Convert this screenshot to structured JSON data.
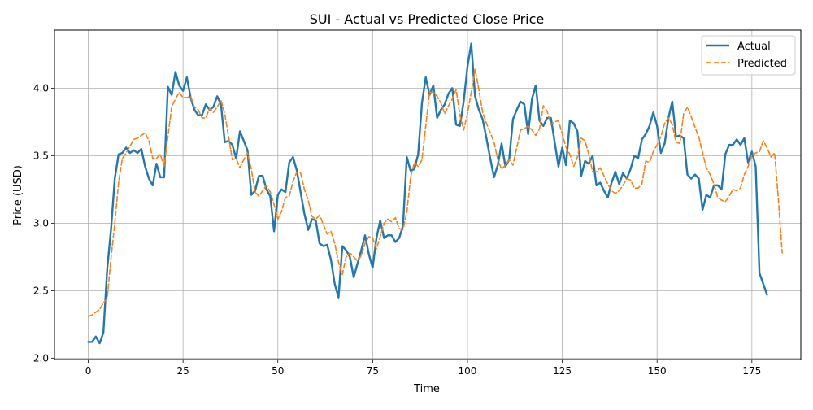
{
  "chart_data": {
    "type": "line",
    "title": "SUI - Actual vs Predicted Close Price",
    "xlabel": "Time",
    "ylabel": "Price (USD)",
    "xlim": [
      -8.9,
      187.9
    ],
    "ylim": [
      1.99,
      4.43
    ],
    "xticks": [
      0,
      25,
      50,
      75,
      100,
      125,
      150,
      175
    ],
    "yticks": [
      2.0,
      2.5,
      3.0,
      3.5,
      4.0
    ],
    "ytick_labels": [
      "2.0",
      "2.5",
      "3.0",
      "3.5",
      "4.0"
    ],
    "grid": true,
    "legend_position": "top-right",
    "series": [
      {
        "name": "Actual",
        "color": "#1f77b4",
        "style": "solid",
        "values": [
          2.12,
          2.12,
          2.16,
          2.11,
          2.19,
          2.66,
          2.95,
          3.33,
          3.51,
          3.52,
          3.56,
          3.52,
          3.54,
          3.52,
          3.55,
          3.42,
          3.33,
          3.28,
          3.44,
          3.34,
          3.34,
          4.01,
          3.95,
          4.12,
          4.02,
          3.98,
          4.08,
          3.93,
          3.84,
          3.8,
          3.8,
          3.88,
          3.84,
          3.86,
          3.94,
          3.88,
          3.6,
          3.61,
          3.58,
          3.48,
          3.68,
          3.61,
          3.54,
          3.21,
          3.24,
          3.35,
          3.35,
          3.25,
          3.2,
          2.94,
          3.21,
          3.25,
          3.23,
          3.45,
          3.49,
          3.39,
          3.23,
          3.07,
          2.95,
          3.03,
          3.02,
          2.85,
          2.83,
          2.84,
          2.73,
          2.55,
          2.45,
          2.83,
          2.8,
          2.75,
          2.6,
          2.7,
          2.8,
          2.91,
          2.77,
          2.67,
          2.89,
          3.02,
          2.89,
          2.91,
          2.91,
          2.86,
          2.89,
          2.98,
          3.49,
          3.39,
          3.4,
          3.51,
          3.89,
          4.08,
          3.95,
          4.02,
          3.78,
          3.84,
          3.88,
          3.96,
          4.0,
          3.73,
          3.72,
          3.9,
          4.16,
          4.33,
          3.94,
          3.84,
          3.77,
          3.63,
          3.48,
          3.34,
          3.43,
          3.59,
          3.42,
          3.47,
          3.77,
          3.84,
          3.9,
          3.88,
          3.66,
          3.92,
          4.02,
          3.76,
          3.72,
          3.78,
          3.78,
          3.6,
          3.42,
          3.56,
          3.43,
          3.76,
          3.74,
          3.68,
          3.35,
          3.46,
          3.44,
          3.5,
          3.28,
          3.3,
          3.24,
          3.19,
          3.3,
          3.38,
          3.29,
          3.37,
          3.33,
          3.4,
          3.5,
          3.48,
          3.62,
          3.66,
          3.72,
          3.82,
          3.72,
          3.52,
          3.59,
          3.78,
          3.9,
          3.64,
          3.65,
          3.63,
          3.36,
          3.33,
          3.36,
          3.33,
          3.1,
          3.21,
          3.19,
          3.28,
          3.28,
          3.25,
          3.51,
          3.58,
          3.58,
          3.62,
          3.58,
          3.63,
          3.45,
          3.53,
          3.42,
          2.63,
          2.55,
          2.47
        ]
      },
      {
        "name": "Predicted",
        "color": "#ff7f0e",
        "style": "dashed",
        "values": [
          2.31,
          2.32,
          2.34,
          2.36,
          2.41,
          2.44,
          2.74,
          3.0,
          3.3,
          3.48,
          3.52,
          3.57,
          3.62,
          3.63,
          3.65,
          3.67,
          3.61,
          3.48,
          3.48,
          3.51,
          3.42,
          3.64,
          3.86,
          3.92,
          3.97,
          3.93,
          3.93,
          3.94,
          3.86,
          3.84,
          3.78,
          3.78,
          3.85,
          3.82,
          3.86,
          3.91,
          3.81,
          3.64,
          3.47,
          3.48,
          3.41,
          3.47,
          3.52,
          3.4,
          3.23,
          3.2,
          3.24,
          3.28,
          3.23,
          3.14,
          3.03,
          3.09,
          3.19,
          3.2,
          3.31,
          3.38,
          3.37,
          3.25,
          3.17,
          3.05,
          3.03,
          3.06,
          2.99,
          2.92,
          2.94,
          2.85,
          2.71,
          2.62,
          2.75,
          2.78,
          2.75,
          2.72,
          2.76,
          2.85,
          2.9,
          2.89,
          2.81,
          2.9,
          3.0,
          3.03,
          3.01,
          3.04,
          2.96,
          2.95,
          3.08,
          3.34,
          3.45,
          3.42,
          3.47,
          3.72,
          3.97,
          3.97,
          3.94,
          3.89,
          3.81,
          3.87,
          3.92,
          3.99,
          3.8,
          3.69,
          3.81,
          3.97,
          4.14,
          3.99,
          3.82,
          3.74,
          3.67,
          3.6,
          3.47,
          3.4,
          3.43,
          3.47,
          3.43,
          3.56,
          3.69,
          3.7,
          3.72,
          3.69,
          3.65,
          3.7,
          3.87,
          3.83,
          3.73,
          3.75,
          3.76,
          3.66,
          3.56,
          3.51,
          3.42,
          3.49,
          3.63,
          3.61,
          3.51,
          3.38,
          3.38,
          3.41,
          3.35,
          3.29,
          3.24,
          3.22,
          3.24,
          3.28,
          3.33,
          3.32,
          3.26,
          3.26,
          3.29,
          3.46,
          3.45,
          3.53,
          3.58,
          3.64,
          3.74,
          3.78,
          3.73,
          3.6,
          3.59,
          3.81,
          3.86,
          3.79,
          3.71,
          3.64,
          3.52,
          3.41,
          3.36,
          3.29,
          3.19,
          3.17,
          3.16,
          3.2,
          3.25,
          3.24,
          3.26,
          3.36,
          3.42,
          3.5,
          3.52,
          3.53,
          3.61,
          3.56,
          3.49,
          3.52,
          3.17,
          2.78
        ]
      }
    ]
  }
}
